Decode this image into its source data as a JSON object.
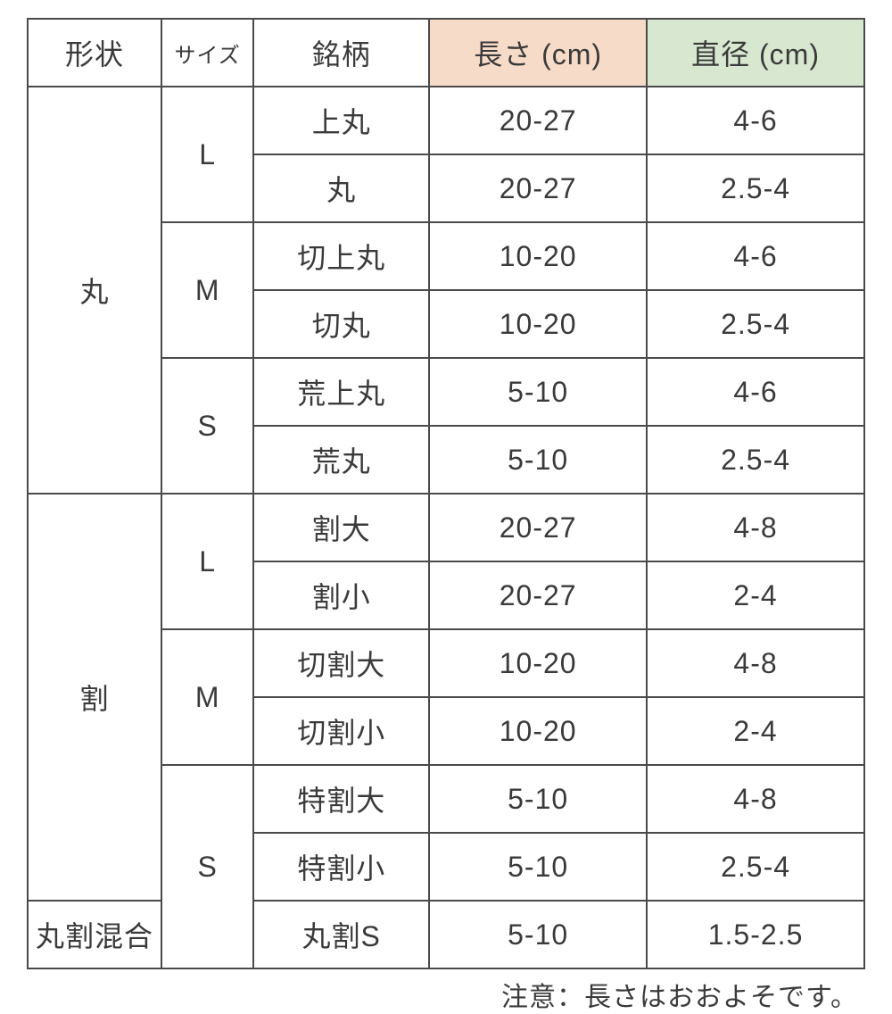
{
  "table": {
    "headers": {
      "shape": "形状",
      "size": "サイズ",
      "name": "銘柄",
      "length": "長さ (cm)",
      "diameter": "直径 (cm)"
    },
    "header_bg": {
      "length": "#f7dbc9",
      "diameter": "#d8e8d0"
    },
    "border_color": "#4a4a4a",
    "text_color": "#3a3a3a",
    "fontsize_main": 32,
    "fontsize_size_header": 24,
    "groups": [
      {
        "shape": "丸",
        "sizes": [
          {
            "size": "L",
            "rows": [
              {
                "name": "上丸",
                "length": "20-27",
                "diameter": "4-6"
              },
              {
                "name": "丸",
                "length": "20-27",
                "diameter": "2.5-4"
              }
            ]
          },
          {
            "size": "M",
            "rows": [
              {
                "name": "切上丸",
                "length": "10-20",
                "diameter": "4-6"
              },
              {
                "name": "切丸",
                "length": "10-20",
                "diameter": "2.5-4"
              }
            ]
          },
          {
            "size": "S",
            "rows": [
              {
                "name": "荒上丸",
                "length": "5-10",
                "diameter": "4-6"
              },
              {
                "name": "荒丸",
                "length": "5-10",
                "diameter": "2.5-4"
              }
            ]
          }
        ]
      },
      {
        "shape": "割",
        "sizes": [
          {
            "size": "L",
            "rows": [
              {
                "name": "割大",
                "length": "20-27",
                "diameter": "4-8"
              },
              {
                "name": "割小",
                "length": "20-27",
                "diameter": "2-4"
              }
            ]
          },
          {
            "size": "M",
            "rows": [
              {
                "name": "切割大",
                "length": "10-20",
                "diameter": "4-8"
              },
              {
                "name": "切割小",
                "length": "10-20",
                "diameter": "2-4"
              }
            ]
          },
          {
            "size": "S",
            "rows": [
              {
                "name": "特割大",
                "length": "5-10",
                "diameter": "4-8"
              },
              {
                "name": "特割小",
                "length": "5-10",
                "diameter": "2.5-4"
              }
            ]
          }
        ]
      }
    ],
    "final_row": {
      "shape": "丸割混合",
      "size_merged_with_above": true,
      "name": "丸割S",
      "length": "5-10",
      "diameter": "1.5-2.5"
    }
  },
  "note": "注意：長さはおおよそです。"
}
